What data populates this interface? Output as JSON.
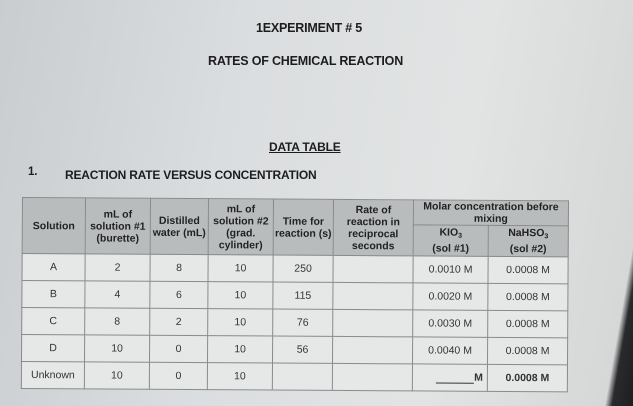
{
  "header": {
    "experiment": "1EXPERIMENT # 5",
    "title": "RATES OF CHEMICAL REACTION",
    "data_table_label": "DATA TABLE",
    "section_number": "1.",
    "section_title": "REACTION RATE VERSUS CONCENTRATION"
  },
  "table": {
    "columns": {
      "solution": "Solution",
      "ml_sol1": "mL of solution #1 (burette)",
      "water": "Distilled water (mL)",
      "ml_sol2": "mL of solution #2 (grad. cylinder)",
      "time": "Time for reaction (s)",
      "rate": "Rate of reaction in reciprocal seconds",
      "molar": "Molar concentration before mixing",
      "kio3": "KIO",
      "kio3_sub": "3",
      "kio3_note": "(sol #1)",
      "nahso3": "NaHSO",
      "nahso3_sub": "3",
      "nahso3_note": "(sol #2)"
    },
    "rows": [
      {
        "solution": "A",
        "ml1": "2",
        "water": "8",
        "ml2": "10",
        "time": "250",
        "rate": "",
        "kio3": "0.0010 M",
        "nahso3": "0.0008 M"
      },
      {
        "solution": "B",
        "ml1": "4",
        "water": "6",
        "ml2": "10",
        "time": "115",
        "rate": "",
        "kio3": "0.0020 M",
        "nahso3": "0.0008 M"
      },
      {
        "solution": "C",
        "ml1": "8",
        "water": "2",
        "ml2": "10",
        "time": "76",
        "rate": "",
        "kio3": "0.0030 M",
        "nahso3": "0.0008 M"
      },
      {
        "solution": "D",
        "ml1": "10",
        "water": "0",
        "ml2": "10",
        "time": "56",
        "rate": "",
        "kio3": "0.0040 M",
        "nahso3": "0.0008 M"
      },
      {
        "solution": "Unknown",
        "ml1": "10",
        "water": "0",
        "ml2": "10",
        "time": "",
        "rate": "",
        "kio3": "M",
        "nahso3": "0.0008 M"
      }
    ]
  }
}
